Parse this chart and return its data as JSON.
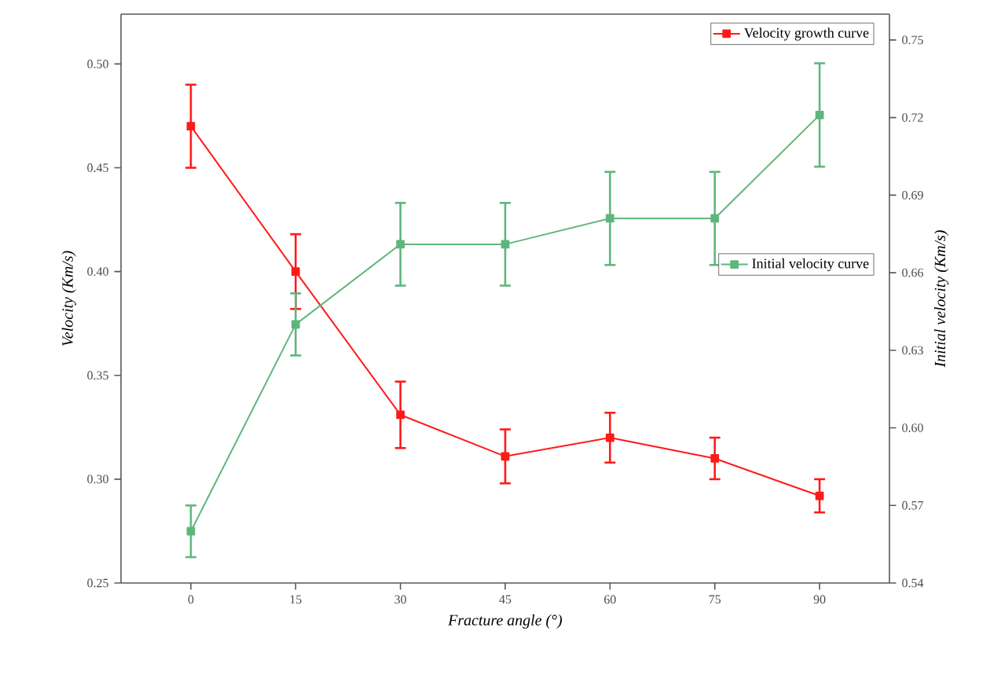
{
  "chart_data": {
    "type": "line",
    "xlabel": "Fracture angle (°)",
    "ylabel": "Velocity (Km/s)",
    "y2label": "Initial velocity (Km/s)",
    "x": [
      0,
      15,
      30,
      45,
      60,
      75,
      90
    ],
    "xlim": [
      -10,
      100
    ],
    "xticks": [
      0,
      15,
      30,
      45,
      60,
      75,
      90
    ],
    "ylim": [
      0.25,
      0.524
    ],
    "yticks": [
      0.25,
      {
        "value": 0.3,
        "label": "0.30"
      },
      0.35,
      {
        "value": 0.4,
        "label": "0.40"
      },
      0.45,
      {
        "value": 0.5,
        "label": "0.50"
      }
    ],
    "y2lim": [
      0.54,
      0.76
    ],
    "y2ticks": [
      0.54,
      0.57,
      {
        "value": 0.6,
        "label": "0.60"
      },
      0.63,
      0.66,
      0.69,
      0.72,
      0.75
    ],
    "marker": "square",
    "legend": "top right",
    "grid": false,
    "series": [
      {
        "name": "Velocity growth curve",
        "color": "#ff1a1a",
        "values": [
          0.47,
          0.4,
          0.331,
          0.311,
          0.32,
          0.31,
          0.292
        ],
        "errors": [
          0.02,
          0.018,
          0.016,
          0.013,
          0.012,
          0.01,
          0.008
        ]
      },
      {
        "name": "Initial velocity curve",
        "color": "#5fb67c",
        "axis": "y2",
        "values": [
          0.56,
          0.64,
          0.671,
          0.671,
          0.681,
          0.681,
          0.721
        ],
        "errors": [
          0.01,
          0.012,
          0.016,
          0.016,
          0.018,
          0.018,
          0.02
        ]
      }
    ]
  }
}
